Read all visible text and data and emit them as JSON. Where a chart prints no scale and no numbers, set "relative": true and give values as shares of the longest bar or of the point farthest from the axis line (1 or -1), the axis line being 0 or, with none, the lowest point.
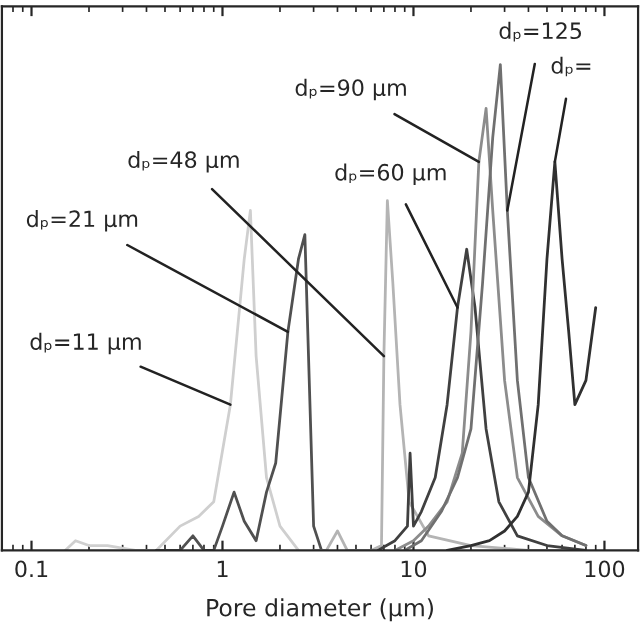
{
  "chart_data": {
    "type": "line",
    "xlabel": "Pore diameter (μm)",
    "relative": true,
    "log": "x",
    "xlim": [
      0.07,
      150
    ],
    "xticks": [
      0.1,
      1,
      10,
      100
    ],
    "grid": false,
    "legend": false,
    "marker": "none",
    "line_style": "solid",
    "series": [
      {
        "color": "#cfcfcf",
        "x": [
          0.15,
          0.17,
          0.2,
          0.25,
          0.35,
          0.45,
          0.6,
          0.75,
          0.9,
          1.1,
          1.3,
          1.4,
          1.5,
          1.7,
          2.0,
          2.5
        ],
        "values": [
          0,
          0.02,
          0.01,
          0.01,
          0,
          0,
          0.05,
          0.07,
          0.1,
          0.3,
          0.6,
          0.7,
          0.4,
          0.15,
          0.05,
          0
        ]
      },
      {
        "color": "#505050",
        "x": [
          0.45,
          0.6,
          0.7,
          0.8,
          0.9,
          1.0,
          1.15,
          1.3,
          1.5,
          1.7,
          1.9,
          2.2,
          2.5,
          2.7,
          3.0,
          3.3
        ],
        "values": [
          0,
          0,
          0.03,
          0,
          0,
          0.05,
          0.12,
          0.06,
          0.02,
          0.12,
          0.18,
          0.45,
          0.6,
          0.65,
          0.05,
          0
        ]
      },
      {
        "color": "#b4b4b4",
        "x": [
          3,
          3.5,
          4.0,
          4.5,
          5,
          6,
          6.8,
          7.0,
          7.3,
          7.8,
          8.5,
          9.5,
          12,
          20,
          40,
          80
        ],
        "values": [
          0,
          0,
          0.04,
          0,
          0,
          0,
          0.01,
          0.4,
          0.72,
          0.55,
          0.3,
          0.1,
          0.03,
          0.01,
          0,
          0
        ]
      },
      {
        "color": "#404040",
        "x": [
          6.5,
          8,
          9.3,
          9.6,
          10,
          11,
          13,
          15,
          17,
          19,
          21,
          24,
          28,
          35,
          50,
          80
        ],
        "values": [
          0,
          0.02,
          0.05,
          0.2,
          0.05,
          0.08,
          0.15,
          0.3,
          0.5,
          0.62,
          0.5,
          0.25,
          0.1,
          0.03,
          0.01,
          0
        ]
      },
      {
        "color": "#8c8c8c",
        "x": [
          8,
          10,
          12,
          15,
          18,
          20,
          22,
          24,
          26,
          30,
          35,
          45,
          60,
          80
        ],
        "values": [
          0,
          0.02,
          0.05,
          0.1,
          0.2,
          0.45,
          0.8,
          0.91,
          0.7,
          0.35,
          0.15,
          0.07,
          0.03,
          0.01
        ]
      },
      {
        "color": "#707070",
        "x": [
          9,
          11,
          14,
          17,
          20,
          23,
          26,
          28.5,
          31,
          35,
          40,
          50,
          60,
          80
        ],
        "values": [
          0,
          0.02,
          0.08,
          0.15,
          0.25,
          0.55,
          0.85,
          1.0,
          0.7,
          0.35,
          0.15,
          0.06,
          0.03,
          0.01
        ]
      },
      {
        "color": "#303030",
        "x": [
          15,
          20,
          25,
          30,
          35,
          40,
          45,
          50,
          55,
          60,
          65,
          70,
          80,
          90
        ],
        "values": [
          0,
          0.01,
          0.02,
          0.04,
          0.07,
          0.12,
          0.3,
          0.6,
          0.8,
          0.6,
          0.45,
          0.3,
          0.35,
          0.5
        ]
      }
    ],
    "annotations": [
      {
        "text": "dₚ=11 μm",
        "x": 1.1,
        "y": 0.3
      },
      {
        "text": "dₚ=21 μm",
        "x": 2.2,
        "y": 0.45
      },
      {
        "text": "dₚ=48 μm",
        "x": 7.0,
        "y": 0.4
      },
      {
        "text": "dₚ=60 μm",
        "x": 17,
        "y": 0.5
      },
      {
        "text": "dₚ=90 μm",
        "x": 22,
        "y": 0.8
      },
      {
        "text": "dₚ=125",
        "x": 31,
        "y": 0.7
      },
      {
        "text": "dₚ=",
        "x": 55,
        "y": 0.8
      }
    ]
  }
}
